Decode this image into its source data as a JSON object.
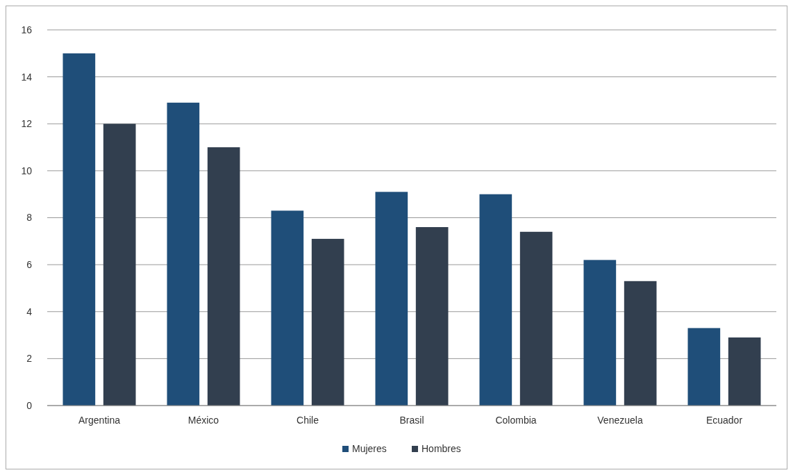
{
  "chart_data": {
    "type": "bar",
    "categories": [
      "Argentina",
      "México",
      "Chile",
      "Brasil",
      "Colombia",
      "Venezuela",
      "Ecuador"
    ],
    "series": [
      {
        "name": "Mujeres",
        "color": "#1f4e79",
        "values": [
          15,
          12.9,
          8.3,
          9.1,
          9.0,
          6.2,
          3.3
        ]
      },
      {
        "name": "Hombres",
        "color": "#323f4f",
        "values": [
          12,
          11.0,
          7.1,
          7.6,
          7.4,
          5.3,
          2.9
        ]
      }
    ],
    "ylim": [
      0,
      16
    ],
    "yticks": [
      0,
      2,
      4,
      6,
      8,
      10,
      12,
      14,
      16
    ],
    "grid": "y",
    "legend": "bottom"
  }
}
